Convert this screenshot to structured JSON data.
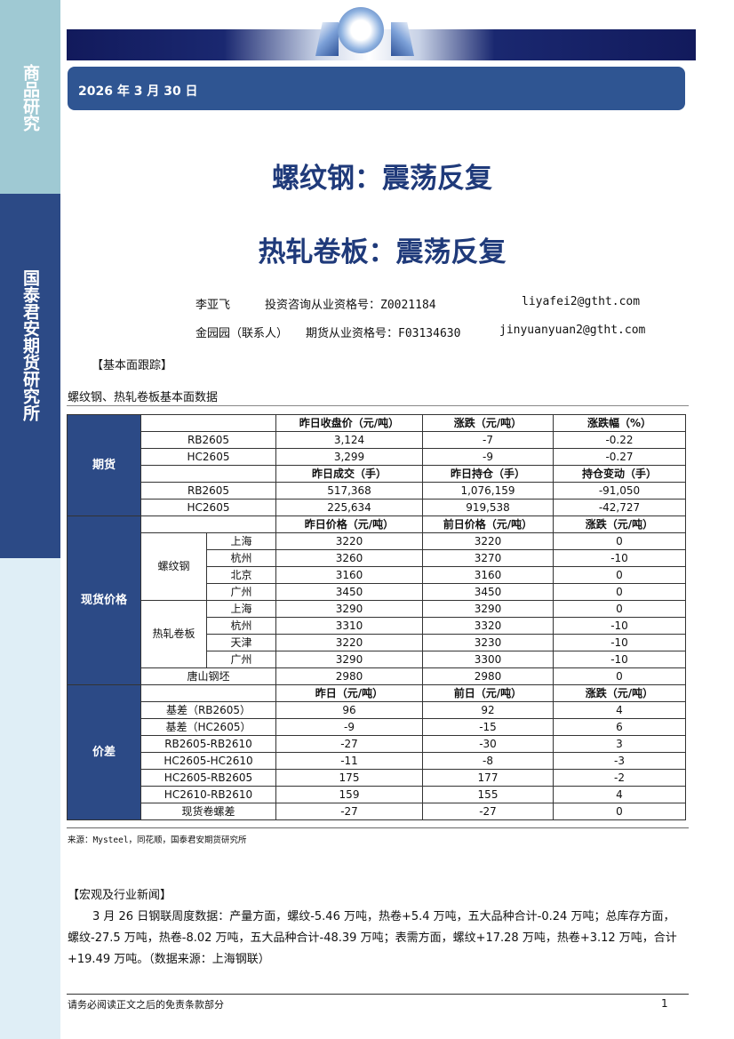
{
  "sidebar": {
    "top_label": "商品研究",
    "main_label": "国泰君安期货研究所"
  },
  "header": {
    "date": "2026 年 3 月 30 日"
  },
  "titles": [
    "螺纹钢：震荡反复",
    "热轧卷板：震荡反复"
  ],
  "authors": [
    {
      "name": "李亚飞",
      "cert": "投资咨询从业资格号：Z0021184",
      "email": "liyafei2@gtht.com"
    },
    {
      "name": "金园园（联系人）",
      "cert": "期货从业资格号：F03134630",
      "email": "jinyuanyuan2@gtht.com"
    }
  ],
  "section_fundamental": "【基本面跟踪】",
  "table_caption": "螺纹钢、热轧卷板基本面数据",
  "table": {
    "futures": {
      "label": "期货",
      "header1": [
        "昨日收盘价（元/吨）",
        "涨跌（元/吨）",
        "涨跌幅（%）"
      ],
      "rows1": [
        [
          "RB2605",
          "3,124",
          "-7",
          "-0.22"
        ],
        [
          "HC2605",
          "3,299",
          "-9",
          "-0.27"
        ]
      ],
      "header2": [
        "昨日成交（手）",
        "昨日持仓（手）",
        "持仓变动（手）"
      ],
      "rows2": [
        [
          "RB2605",
          "517,368",
          "1,076,159",
          "-91,050"
        ],
        [
          "HC2605",
          "225,634",
          "919,538",
          "-42,727"
        ]
      ]
    },
    "spot": {
      "label": "现货价格",
      "header": [
        "昨日价格（元/吨）",
        "前日价格（元/吨）",
        "涨跌（元/吨）"
      ],
      "groups": [
        {
          "name": "螺纹钢",
          "rows": [
            [
              "上海",
              "3220",
              "3220",
              "0"
            ],
            [
              "杭州",
              "3260",
              "3270",
              "-10"
            ],
            [
              "北京",
              "3160",
              "3160",
              "0"
            ],
            [
              "广州",
              "3450",
              "3450",
              "0"
            ]
          ]
        },
        {
          "name": "热轧卷板",
          "rows": [
            [
              "上海",
              "3290",
              "3290",
              "0"
            ],
            [
              "杭州",
              "3310",
              "3320",
              "-10"
            ],
            [
              "天津",
              "3220",
              "3230",
              "-10"
            ],
            [
              "广州",
              "3290",
              "3300",
              "-10"
            ]
          ]
        }
      ],
      "billet": [
        "唐山钢坯",
        "2980",
        "2980",
        "0"
      ]
    },
    "spread": {
      "label": "价差",
      "header": [
        "昨日（元/吨）",
        "前日（元/吨）",
        "涨跌（元/吨）"
      ],
      "rows": [
        [
          "基差（RB2605）",
          "96",
          "92",
          "4"
        ],
        [
          "基差（HC2605）",
          "-9",
          "-15",
          "6"
        ],
        [
          "RB2605-RB2610",
          "-27",
          "-30",
          "3"
        ],
        [
          "HC2605-HC2610",
          "-11",
          "-8",
          "-3"
        ],
        [
          "HC2605-RB2605",
          "175",
          "177",
          "-2"
        ],
        [
          "HC2610-RB2610",
          "159",
          "155",
          "4"
        ],
        [
          "现货卷螺差",
          "-27",
          "-27",
          "0"
        ]
      ]
    }
  },
  "source": "来源：Mysteel，同花顺，国泰君安期货研究所",
  "section_news": "【宏观及行业新闻】",
  "news": "3 月 26 日钢联周度数据：产量方面，螺纹-5.46 万吨，热卷+5.4 万吨，五大品种合计-0.24 万吨；总库存方面，螺纹-27.5 万吨，热卷-8.02 万吨，五大品种合计-48.39 万吨；表需方面，螺纹+17.28 万吨，热卷+3.12 万吨，合计+19.49 万吨。（数据来源：上海钢联）",
  "footer": {
    "disclaimer": "请务必阅读正文之后的免责条款部分",
    "page": "1"
  }
}
